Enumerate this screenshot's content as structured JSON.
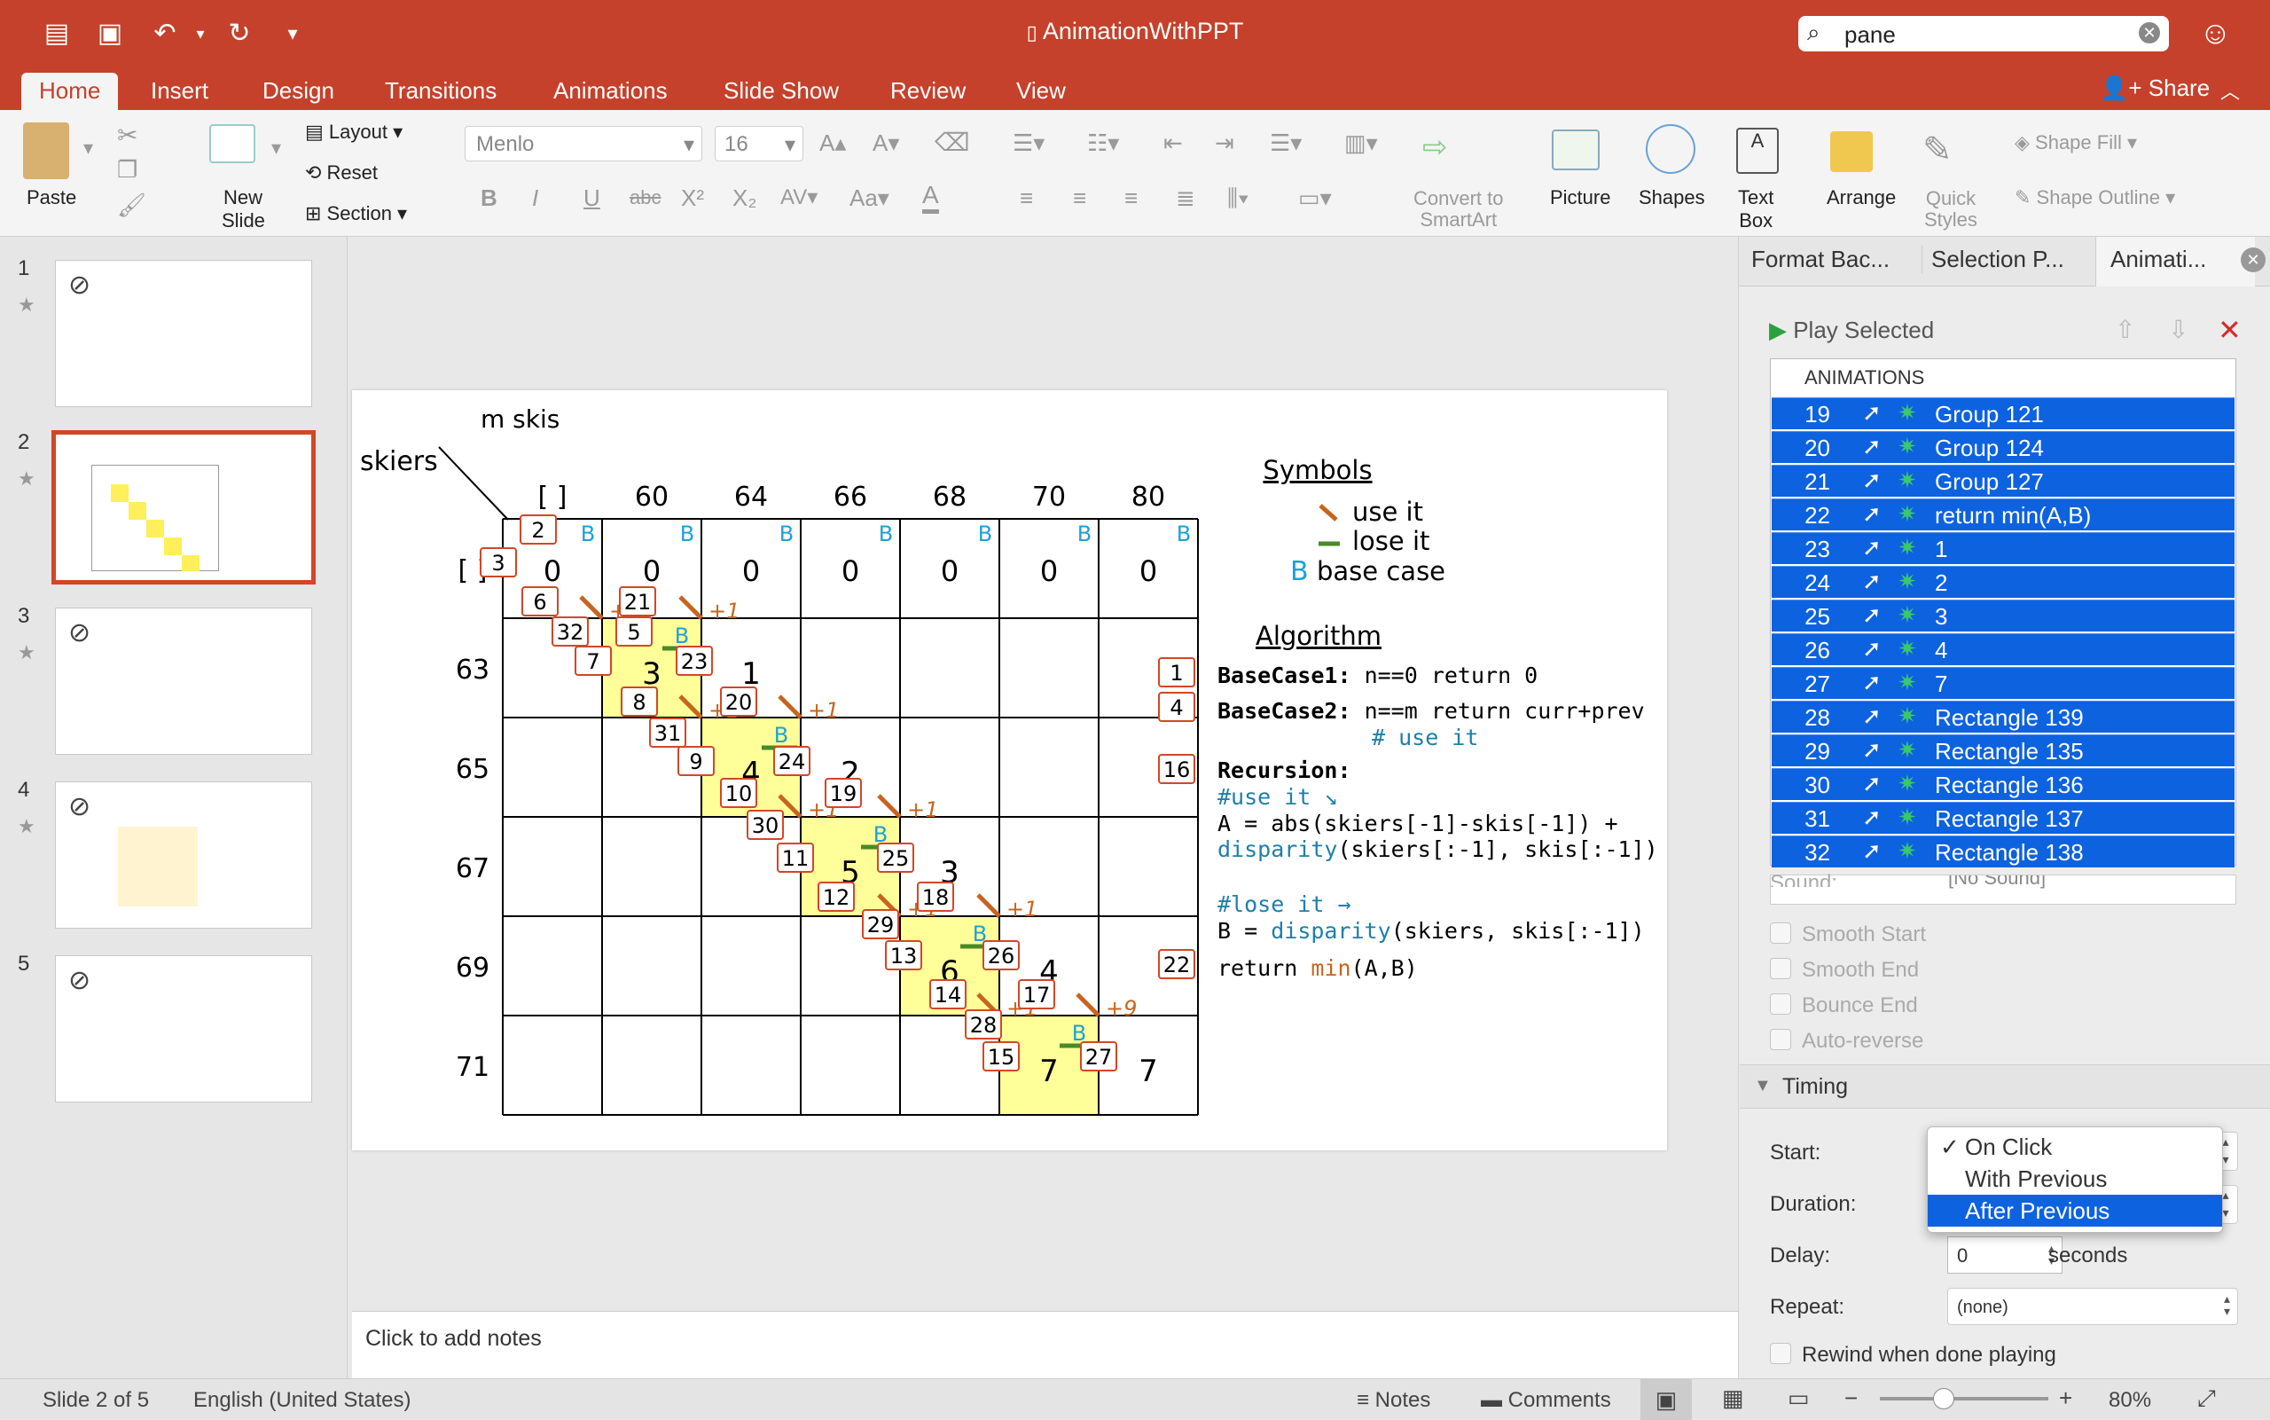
{
  "window": {
    "title": "AnimationWithPPT",
    "search_value": "pane",
    "share": "Share"
  },
  "tabs": [
    "Home",
    "Insert",
    "Design",
    "Transitions",
    "Animations",
    "Slide Show",
    "Review",
    "View"
  ],
  "ribbon": {
    "paste": "Paste",
    "new_slide_1": "New",
    "new_slide_2": "Slide",
    "layout": "Layout",
    "reset": "Reset",
    "section": "Section",
    "font": "Menlo",
    "size": "16",
    "convert_1": "Convert to",
    "convert_2": "SmartArt",
    "picture": "Picture",
    "shapes": "Shapes",
    "textbox_1": "Text",
    "textbox_2": "Box",
    "arrange": "Arrange",
    "quick_1": "Quick",
    "quick_2": "Styles",
    "shape_fill": "Shape Fill",
    "shape_outline": "Shape Outline"
  },
  "thumbs": [
    "1",
    "2",
    "3",
    "4",
    "5"
  ],
  "slide": {
    "m_skis": "m skis",
    "skiers": "skiers",
    "cols": [
      "[ ]",
      "60",
      "64",
      "66",
      "68",
      "70",
      "80"
    ],
    "rows": [
      "[ ]",
      "63",
      "65",
      "67",
      "69",
      "71"
    ],
    "zeros": [
      "0",
      "0",
      "0",
      "0",
      "0",
      "0",
      "0"
    ],
    "diag": [
      "3",
      "1",
      "4",
      "2",
      "5",
      "3",
      "6",
      "4",
      "7",
      "7"
    ],
    "b": "B",
    "plus1": "+1",
    "plus9": "+9",
    "tags": [
      "2",
      "3",
      "6",
      "21",
      "32",
      "5",
      "7",
      "23",
      "8",
      "20",
      "31",
      "9",
      "24",
      "10",
      "19",
      "30",
      "11",
      "25",
      "12",
      "18",
      "29",
      "13",
      "26",
      "14",
      "17",
      "28",
      "15",
      "27",
      "1",
      "4",
      "16",
      "22"
    ],
    "symbols": {
      "title": "Symbols",
      "use": "use it",
      "lose": "lose it",
      "base": "base case",
      "b": "B"
    },
    "algo": {
      "title": "Algorithm",
      "l1a": "BaseCase1:",
      "l1b": " n==0 return 0",
      "l2a": "BaseCase2:",
      "l2b": " n==m return curr+prev",
      "l3": "# use it",
      "l4": "Recursion:",
      "l5": "#use it ↘",
      "l6": "A = abs(skiers[-1]-skis[-1]) +",
      "l7a": "disparity",
      "l7b": "(skiers[:-1], skis[:-1])",
      "l8": "#lose it →",
      "l9a": "B = ",
      "l9b": "disparity",
      "l9c": "(skiers, skis[:-1])",
      "l10a": "return ",
      "l10b": "min",
      "l10c": "(A,B)"
    }
  },
  "notes": "Click to add notes",
  "pane": {
    "tabs": [
      "Format Bac...",
      "Selection P...",
      "Animati..."
    ],
    "play": "Play Selected",
    "header": "ANIMATIONS",
    "animations": [
      [
        "19",
        "Group 121"
      ],
      [
        "20",
        "Group 124"
      ],
      [
        "21",
        "Group 127"
      ],
      [
        "22",
        "return min(A,B)"
      ],
      [
        "23",
        "1"
      ],
      [
        "24",
        "2"
      ],
      [
        "25",
        "3"
      ],
      [
        "26",
        "4"
      ],
      [
        "27",
        "7"
      ],
      [
        "28",
        "Rectangle 139"
      ],
      [
        "29",
        "Rectangle 135"
      ],
      [
        "30",
        "Rectangle 136"
      ],
      [
        "31",
        "Rectangle 137"
      ],
      [
        "32",
        "Rectangle 138"
      ]
    ],
    "sound_label": "Sound:",
    "sound_value": "[No Sound]",
    "checks": [
      "Smooth Start",
      "Smooth End",
      "Bounce End",
      "Auto-reverse"
    ],
    "timing": "Timing",
    "start": "Start:",
    "duration": "Duration:",
    "delay": "Delay:",
    "delay_value": "0",
    "seconds": "seconds",
    "repeat": "Repeat:",
    "repeat_value": "(none)",
    "rewind": "Rewind when done playing",
    "start_options": [
      "On Click",
      "With Previous",
      "After Previous"
    ],
    "checkmark": "✓"
  },
  "status": {
    "slide": "Slide 2 of 5",
    "lang": "English (United States)",
    "notes": "Notes",
    "comments": "Comments",
    "zoom": "80%"
  },
  "colors": {
    "accent": "#c5412b",
    "selection": "#0d62e0",
    "highlight": "#ffff99"
  }
}
